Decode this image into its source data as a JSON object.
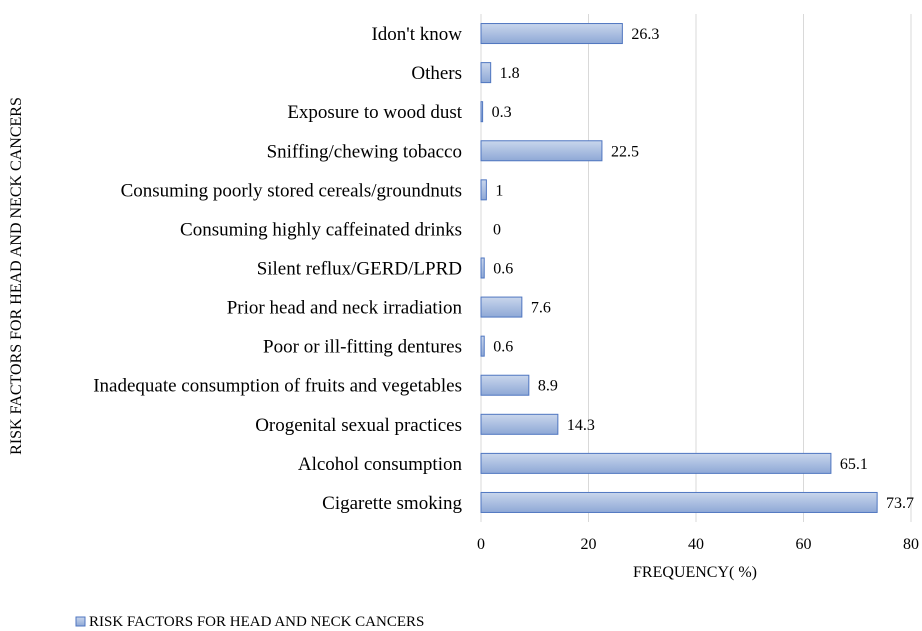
{
  "chart_data": {
    "type": "bar",
    "orientation": "horizontal",
    "categories": [
      "Idon't know",
      "Others",
      "Exposure to wood dust",
      "Sniffing/chewing tobacco",
      "Consuming poorly stored cereals/groundnuts",
      "Consuming highly caffeinated drinks",
      "Silent reflux/GERD/LPRD",
      "Prior head and neck irradiation",
      "Poor or ill-fitting dentures",
      "Inadequate consumption of fruits and vegetables",
      "Orogenital sexual practices",
      "Alcohol consumption",
      "Cigarette smoking"
    ],
    "series": [
      {
        "name": "RISK FACTORS FOR HEAD AND NECK CANCERS",
        "values": [
          26.3,
          1.8,
          0.3,
          22.5,
          1,
          0,
          0.6,
          7.6,
          0.6,
          8.9,
          14.3,
          65.1,
          73.7
        ],
        "value_labels": [
          "26.3",
          "1.8",
          "0.3",
          "22.5",
          "1",
          "0",
          "0.6",
          "7.6",
          "0.6",
          "8.9",
          "14.3",
          "65.1",
          "73.7"
        ]
      }
    ],
    "xlabel": "FREQUENCY( %)",
    "ylabel": "RISK FACTORS FOR HEAD AND NECK CANCERS",
    "xlim": [
      0,
      80
    ],
    "xticks": [
      0,
      20,
      40,
      60,
      80
    ],
    "xtick_labels": [
      "0",
      "20",
      "40",
      "60",
      "80"
    ],
    "grid": "vertical",
    "legend_position": "bottom-left",
    "colors": {
      "bar_fill_light": "#c5d3ea",
      "bar_fill_dark": "#8ea8d6",
      "bar_stroke": "#4f76c0",
      "grid": "#d9d9d9"
    }
  }
}
